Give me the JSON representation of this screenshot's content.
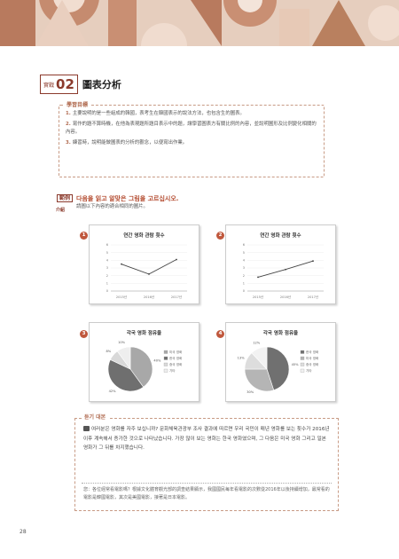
{
  "section": {
    "small": "實戰",
    "number": "02",
    "title": "圖表分析"
  },
  "goals": {
    "label": "學習目標",
    "items": [
      {
        "n": "1.",
        "text": "主要說明的是一些組成的韓國，表考生在韓國表示的說法方法，也包含生的圖表。"
      },
      {
        "n": "2.",
        "text": "寫作的題不算時機，在他為表現題所題目表示中的題，讓學習圖表方有關比例的內容，並說明圖形及比例變化相關的內容。"
      },
      {
        "n": "3.",
        "text": "練習時，說明能做圖表的分析的觀念，以便寫出作業。"
      }
    ]
  },
  "question": {
    "badge": "範例",
    "ko": "다음을 읽고 알맞은 그림을 고르십시오.",
    "sub": "介紹",
    "zh": "請圖以下內容的適合相同的圖片。"
  },
  "charts": {
    "c1": {
      "num": "1",
      "title": "연간 영화 관람 횟수",
      "type": "line",
      "x": [
        "2015년",
        "2016년",
        "2017년"
      ],
      "y": [
        3.5,
        2.2,
        4.1
      ],
      "ylim": [
        0,
        6
      ]
    },
    "c2": {
      "num": "2",
      "title": "연간 영화 관람 횟수",
      "type": "line",
      "x": [
        "2015년",
        "2016년",
        "2017년"
      ],
      "y": [
        1.8,
        2.8,
        3.9
      ],
      "ylim": [
        0,
        6
      ]
    },
    "c3": {
      "num": "3",
      "title": "각국 영화 점유율",
      "type": "pie",
      "slices": [
        {
          "name": "미국 영화",
          "value": 40,
          "color": "#a8a8a8"
        },
        {
          "name": "한국 영화",
          "value": 42,
          "color": "#6f6f6f"
        },
        {
          "name": "중국 영화",
          "value": 8,
          "color": "#d9d9d9"
        },
        {
          "name": "기타",
          "value": 10,
          "color": "#eeeeee"
        }
      ],
      "pct": [
        "40%",
        "42%",
        "8%",
        "10%"
      ]
    },
    "c4": {
      "num": "4",
      "title": "각국 영화 점유율",
      "type": "pie",
      "slices": [
        {
          "name": "한국 영화",
          "value": 45,
          "color": "#707070"
        },
        {
          "name": "미국 영화",
          "value": 30,
          "color": "#b5b5b5"
        },
        {
          "name": "중국 영화",
          "value": 13,
          "color": "#dddddd"
        },
        {
          "name": "기타",
          "value": 12,
          "color": "#f2f2f2"
        }
      ],
      "pct": [
        "45%",
        "30%",
        "13%",
        "12%"
      ]
    }
  },
  "answer": {
    "label": "듣기 대본",
    "ko": "여러분은 영화를 자주 보십니까? 문화체육관광부 조사 결과에 따르면 우리 국민이 매년 영화를 보는 횟수가 2016년 이후 계속해서 증가한 것으로 나타났습니다. 가장 많이 보는 영화는 한국 영화였으며, 그 다음은 미국 영화 그리고 일본 영화가 그 뒤를 차지했습니다.",
    "zh": "您：各位經常看電影嗎？根據文化體育觀光部的調查結果顯示，我國國民每年看電影的次數從2016年以後持續增加，最常看的電影是韓國電影，其次是美國電影，接著是日本電影。"
  },
  "page": {
    "number": "28"
  },
  "colors": {
    "accent": "#b34a2e",
    "banner": "#d3ad97"
  }
}
